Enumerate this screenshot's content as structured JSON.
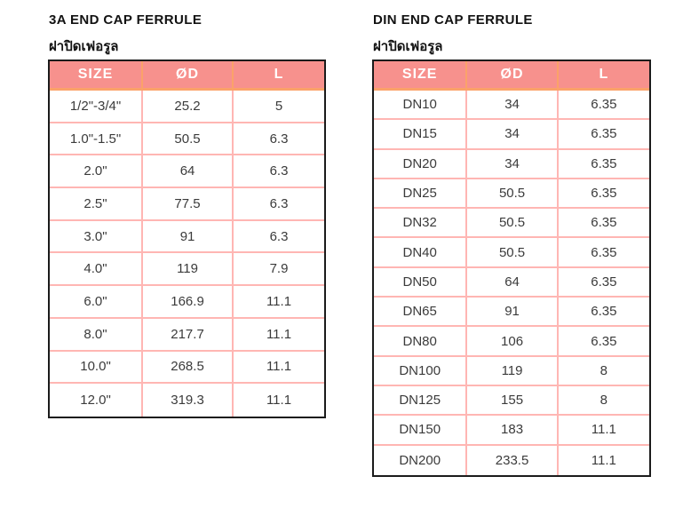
{
  "colors": {
    "header_bg": "#f7918d",
    "header_text": "#ffffff",
    "header_divider": "#fba269",
    "cell_border": "#ffb6b3",
    "outer_border": "#1b1b1b",
    "body_text": "#3b3b3b",
    "title_text": "#121212"
  },
  "tables": [
    {
      "title": "3A END CAP FERRULE",
      "subtitle": "ฝาปิดเฟอรูล",
      "columns": [
        "SIZE",
        "ØD",
        "L"
      ],
      "rows": [
        [
          "1/2\"-3/4\"",
          "25.2",
          "5"
        ],
        [
          "1.0\"-1.5\"",
          "50.5",
          "6.3"
        ],
        [
          "2.0\"",
          "64",
          "6.3"
        ],
        [
          "2.5\"",
          "77.5",
          "6.3"
        ],
        [
          "3.0\"",
          "91",
          "6.3"
        ],
        [
          "4.0\"",
          "119",
          "7.9"
        ],
        [
          "6.0\"",
          "166.9",
          "11.1"
        ],
        [
          "8.0\"",
          "217.7",
          "11.1"
        ],
        [
          "10.0\"",
          "268.5",
          "11.1"
        ],
        [
          "12.0\"",
          "319.3",
          "11.1"
        ]
      ]
    },
    {
      "title": "DIN END CAP FERRULE",
      "subtitle": "ฝาปิดเฟอรูล",
      "columns": [
        "SIZE",
        "ØD",
        "L"
      ],
      "rows": [
        [
          "DN10",
          "34",
          "6.35"
        ],
        [
          "DN15",
          "34",
          "6.35"
        ],
        [
          "DN20",
          "34",
          "6.35"
        ],
        [
          "DN25",
          "50.5",
          "6.35"
        ],
        [
          "DN32",
          "50.5",
          "6.35"
        ],
        [
          "DN40",
          "50.5",
          "6.35"
        ],
        [
          "DN50",
          "64",
          "6.35"
        ],
        [
          "DN65",
          "91",
          "6.35"
        ],
        [
          "DN80",
          "106",
          "6.35"
        ],
        [
          "DN100",
          "119",
          "8"
        ],
        [
          "DN125",
          "155",
          "8"
        ],
        [
          "DN150",
          "183",
          "11.1"
        ],
        [
          "DN200",
          "233.5",
          "11.1"
        ]
      ]
    }
  ]
}
